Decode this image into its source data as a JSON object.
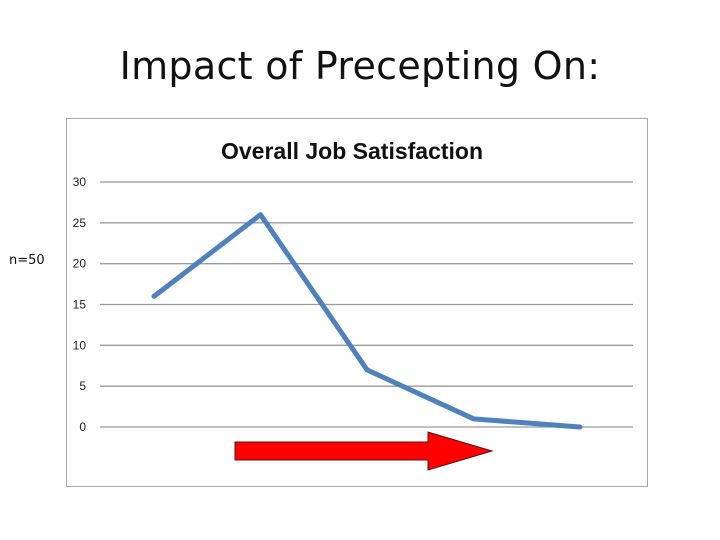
{
  "slide": {
    "title": "Impact of Precepting On:",
    "sample_note": "n=50"
  },
  "chart_data": {
    "type": "line",
    "title": "Overall Job Satisfaction",
    "xlabel": "",
    "ylabel": "",
    "x": [
      1,
      2,
      3,
      4,
      5
    ],
    "series": [
      {
        "values": [
          16,
          26,
          7,
          1,
          0
        ],
        "color": "#4f81bd"
      }
    ],
    "ylim": [
      0,
      30
    ],
    "yticks": [
      0,
      5,
      10,
      15,
      20,
      25,
      30
    ],
    "grid": true,
    "legend": "none",
    "annotation": {
      "shape": "right-arrow",
      "color": "#ff0000"
    }
  }
}
